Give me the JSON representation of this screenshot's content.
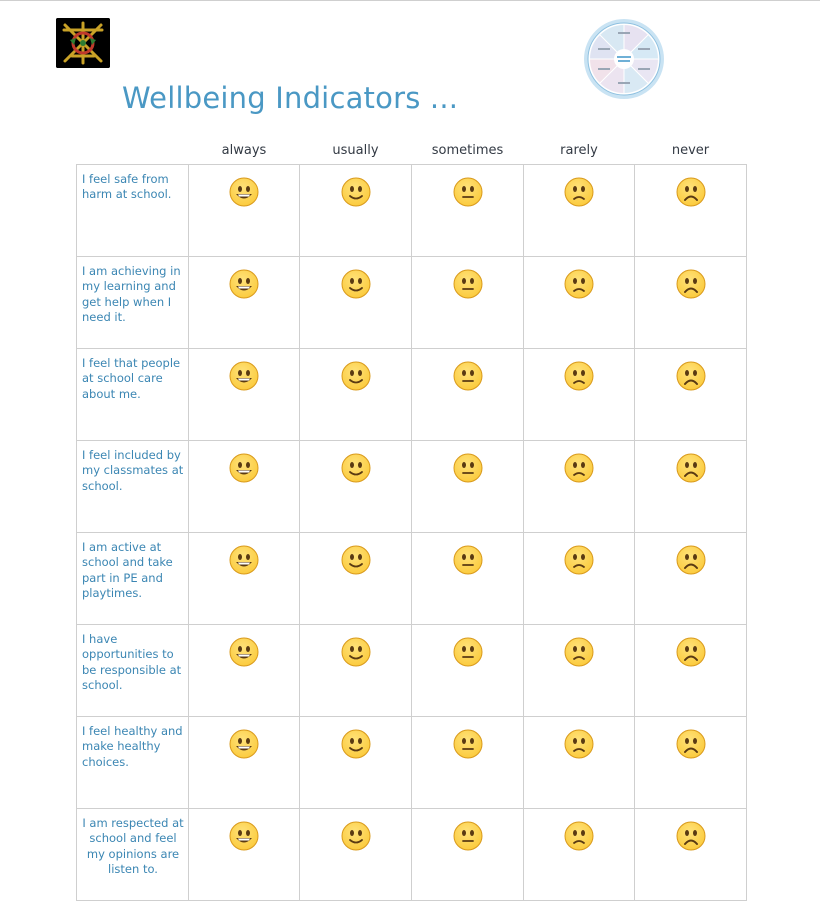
{
  "title": "Wellbeing Indicators ...",
  "colors": {
    "title": "#4a98c4",
    "statement": "#3b86b3",
    "emoji_fill": "#fbcb3e",
    "emoji_edge": "#d99a1c"
  },
  "columns": [
    "always",
    "usually",
    "sometimes",
    "rarely",
    "never"
  ],
  "column_icons": [
    "grinning-face-icon",
    "slightly-smiling-face-icon",
    "neutral-face-icon",
    "slightly-frowning-face-icon",
    "frowning-face-icon"
  ],
  "rows": [
    {
      "statement": "I feel safe from harm at school."
    },
    {
      "statement": "I am achieving in my learning and get help when I need it."
    },
    {
      "statement": "I feel that people at school care about me."
    },
    {
      "statement": "I feel included by my classmates at school."
    },
    {
      "statement": "I am active at school and take part in PE and playtimes."
    },
    {
      "statement": "I have opportunities to be responsible at school."
    },
    {
      "statement": "I feel healthy and make healthy choices."
    },
    {
      "statement": "I am respected at school and feel my opinions are listen to."
    }
  ]
}
